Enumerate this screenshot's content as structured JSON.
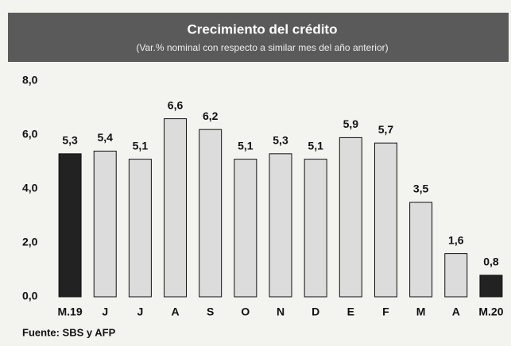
{
  "chart_data": {
    "type": "bar",
    "title": "Crecimiento del crédito",
    "subtitle": "(Var.% nominal con respecto a similar mes del año anterior)",
    "source": "Fuente: SBS y AFP",
    "categories": [
      "M.19",
      "J",
      "J",
      "A",
      "S",
      "O",
      "N",
      "D",
      "E",
      "F",
      "M",
      "A",
      "M.20"
    ],
    "values": [
      5.3,
      5.4,
      5.1,
      6.6,
      6.2,
      5.1,
      5.3,
      5.1,
      5.9,
      5.7,
      3.5,
      1.6,
      0.8
    ],
    "value_labels": [
      "5,3",
      "5,4",
      "5,1",
      "6,6",
      "6,2",
      "5,1",
      "5,3",
      "5,1",
      "5,9",
      "5,7",
      "3,5",
      "1,6",
      "0,8"
    ],
    "colors": [
      "#222222",
      "#dcdcdc",
      "#dcdcdc",
      "#dcdcdc",
      "#dcdcdc",
      "#dcdcdc",
      "#dcdcdc",
      "#dcdcdc",
      "#dcdcdc",
      "#dcdcdc",
      "#dcdcdc",
      "#dcdcdc",
      "#222222"
    ],
    "ylim": [
      0,
      8
    ],
    "yticks": [
      {
        "value": 0,
        "label": "0,0"
      },
      {
        "value": 2,
        "label": "2,0"
      },
      {
        "value": 4,
        "label": "4,0"
      },
      {
        "value": 6,
        "label": "6,0"
      },
      {
        "value": 8,
        "label": "8,0"
      }
    ],
    "grid": false
  }
}
